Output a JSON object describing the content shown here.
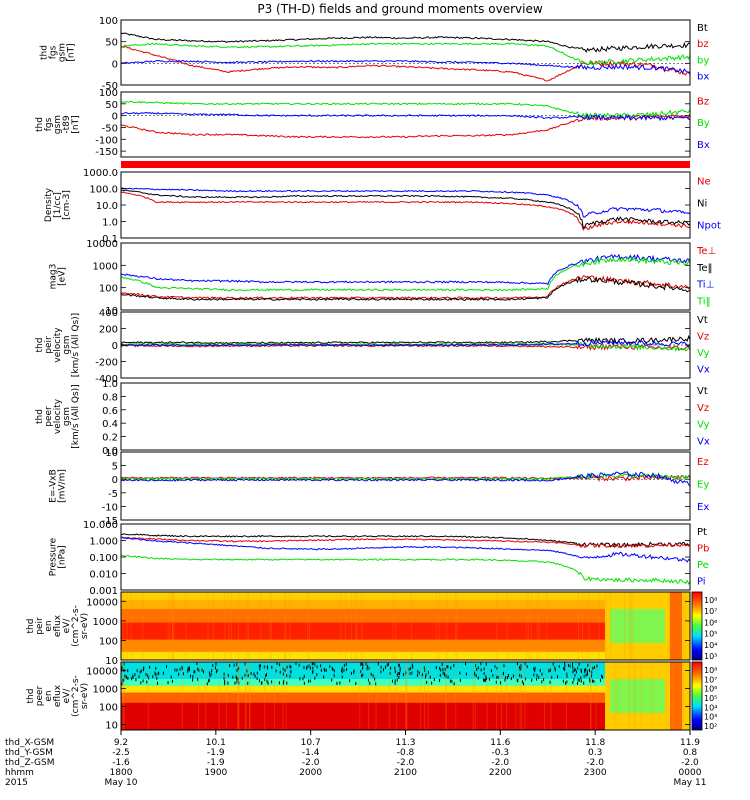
{
  "title": "P3 (TH-D) fields and ground moments overview",
  "colors": {
    "black": "#000000",
    "red": "#e00000",
    "green": "#00e000",
    "blue": "#0000ff"
  },
  "chart_data": [
    {
      "type": "line",
      "panel": "fgs-gsm",
      "ylabel_lines": [
        "thd",
        "fgs",
        "gsm",
        "[nT]"
      ],
      "ylim": [
        -50,
        100
      ],
      "yticks": [
        "100",
        "50",
        "0",
        "-50"
      ],
      "legend": [
        "Bt",
        "bz",
        "by",
        "bx"
      ],
      "legend_colors": [
        "black",
        "red",
        "green",
        "blue"
      ],
      "series": [
        {
          "name": "Bt",
          "color": "black",
          "values": [
            70,
            55,
            52,
            50,
            52,
            55,
            58,
            60,
            58,
            60,
            58,
            55,
            50,
            30,
            35,
            40,
            42
          ]
        },
        {
          "name": "bz",
          "color": "red",
          "values": [
            40,
            18,
            -5,
            -20,
            -12,
            -8,
            -10,
            -5,
            -8,
            -12,
            -15,
            -20,
            -40,
            0,
            0,
            -5,
            -25
          ]
        },
        {
          "name": "by",
          "color": "green",
          "values": [
            40,
            45,
            40,
            38,
            38,
            40,
            42,
            45,
            45,
            45,
            45,
            45,
            40,
            0,
            5,
            10,
            15
          ]
        },
        {
          "name": "bx",
          "color": "blue",
          "values": [
            0,
            5,
            5,
            2,
            3,
            5,
            5,
            5,
            5,
            3,
            2,
            0,
            -5,
            -10,
            -8,
            -10,
            -20
          ]
        }
      ]
    },
    {
      "type": "line",
      "panel": "fgs-gsm-t89",
      "ylabel_lines": [
        "thd",
        "fgs",
        "gsm",
        "-t89",
        "[nT]"
      ],
      "ylim": [
        -175,
        100
      ],
      "yticks": [
        "100",
        "50",
        "0",
        "-50",
        "-100",
        "-150"
      ],
      "legend": [
        "Bz",
        "By",
        "Bx"
      ],
      "legend_colors": [
        "red",
        "green",
        "blue"
      ],
      "series": [
        {
          "name": "Bz",
          "color": "red",
          "values": [
            -40,
            -70,
            -80,
            -80,
            -85,
            -90,
            -90,
            -90,
            -90,
            -85,
            -85,
            -80,
            -60,
            -10,
            -10,
            -5,
            0
          ]
        },
        {
          "name": "By",
          "color": "green",
          "values": [
            60,
            55,
            50,
            50,
            50,
            50,
            50,
            50,
            50,
            50,
            50,
            50,
            40,
            0,
            0,
            5,
            20
          ]
        },
        {
          "name": "Bx",
          "color": "blue",
          "values": [
            10,
            10,
            5,
            5,
            0,
            0,
            0,
            0,
            0,
            0,
            0,
            0,
            -10,
            -5,
            -10,
            -10,
            -10
          ]
        }
      ]
    },
    {
      "type": "line",
      "panel": "density",
      "ylabel_lines": [
        "Density",
        "[1/cc]",
        "[cm-3]"
      ],
      "yscale": "log",
      "ylim": [
        0.1,
        1000
      ],
      "yticks": [
        "1000.0",
        "100.0",
        "10.0",
        "1.0",
        "0.1"
      ],
      "legend": [
        "Ne",
        "Ni",
        "Npot"
      ],
      "legend_colors": [
        "red",
        "black",
        "blue"
      ],
      "series": [
        {
          "name": "Ne",
          "color": "red",
          "values": [
            60,
            15,
            15,
            15,
            15,
            15,
            15,
            15,
            15,
            15,
            15,
            12,
            8,
            0.3,
            1,
            0.8,
            0.5
          ]
        },
        {
          "name": "Ni",
          "color": "black",
          "values": [
            80,
            40,
            30,
            30,
            30,
            35,
            35,
            35,
            35,
            35,
            30,
            25,
            15,
            0.5,
            1.5,
            1,
            0.8
          ]
        },
        {
          "name": "Npot",
          "color": "blue",
          "values": [
            100,
            90,
            80,
            70,
            70,
            70,
            70,
            70,
            70,
            70,
            70,
            60,
            40,
            2,
            6,
            5,
            3
          ]
        }
      ]
    },
    {
      "type": "line",
      "panel": "temperature",
      "ylabel_lines": [
        "mag3",
        "[eV]"
      ],
      "yscale": "log",
      "ylim": [
        10,
        10000
      ],
      "yticks": [
        "10000",
        "1000",
        "100",
        "10"
      ],
      "legend": [
        "Te⊥",
        "Te‖",
        "Ti⊥",
        "Ti‖"
      ],
      "legend_colors": [
        "red",
        "black",
        "blue",
        "green"
      ],
      "series": [
        {
          "name": "Te⊥",
          "color": "red",
          "values": [
            60,
            40,
            35,
            35,
            35,
            35,
            35,
            35,
            35,
            35,
            35,
            35,
            40,
            300,
            200,
            150,
            100
          ]
        },
        {
          "name": "Te‖",
          "color": "black",
          "values": [
            50,
            35,
            30,
            30,
            30,
            30,
            30,
            30,
            30,
            30,
            30,
            30,
            35,
            250,
            180,
            120,
            80
          ]
        },
        {
          "name": "Ti⊥",
          "color": "blue",
          "values": [
            400,
            250,
            200,
            200,
            180,
            180,
            180,
            180,
            180,
            180,
            180,
            170,
            150,
            1500,
            2500,
            2000,
            1500
          ]
        },
        {
          "name": "Ti‖",
          "color": "green",
          "values": [
            300,
            100,
            90,
            80,
            80,
            80,
            80,
            80,
            80,
            80,
            80,
            80,
            90,
            1200,
            2000,
            1500,
            1200
          ]
        }
      ]
    },
    {
      "type": "line",
      "panel": "peir-velocity",
      "ylabel_lines": [
        "thd",
        "peir",
        "velocity",
        "gsm",
        "[km/s (All Qs)]"
      ],
      "ylim": [
        -400,
        400
      ],
      "yticks": [
        "400",
        "200",
        "0",
        "-200",
        "-400"
      ],
      "legend": [
        "Vt",
        "Vz",
        "Vy",
        "Vx"
      ],
      "legend_colors": [
        "black",
        "red",
        "green",
        "blue"
      ],
      "series": [
        {
          "name": "Vt",
          "color": "black",
          "values": [
            30,
            30,
            30,
            25,
            25,
            25,
            30,
            30,
            30,
            30,
            30,
            30,
            40,
            60,
            50,
            60,
            80
          ]
        },
        {
          "name": "Vz",
          "color": "red",
          "values": [
            -10,
            -10,
            -15,
            -10,
            -10,
            -10,
            -10,
            -10,
            -10,
            -10,
            -10,
            -10,
            -20,
            -30,
            -20,
            -30,
            -40
          ]
        },
        {
          "name": "Vy",
          "color": "green",
          "values": [
            10,
            10,
            10,
            10,
            10,
            10,
            10,
            10,
            10,
            10,
            10,
            10,
            10,
            0,
            -20,
            -30,
            -50
          ]
        },
        {
          "name": "Vx",
          "color": "blue",
          "values": [
            0,
            0,
            -5,
            0,
            0,
            0,
            0,
            0,
            0,
            0,
            0,
            0,
            10,
            20,
            30,
            20,
            10
          ]
        }
      ]
    },
    {
      "type": "line",
      "panel": "peer-velocity",
      "ylabel_lines": [
        "thd",
        "peer",
        "velocity",
        "gsm",
        "[km/s (All Qs)]"
      ],
      "ylim": [
        0,
        1
      ],
      "yticks": [
        "1.0",
        "0.8",
        "0.6",
        "0.4",
        "0.2",
        "0.0"
      ],
      "legend": [
        "Vt",
        "Vz",
        "Vy",
        "Vx"
      ],
      "legend_colors": [
        "black",
        "red",
        "green",
        "blue"
      ],
      "series": []
    },
    {
      "type": "line",
      "panel": "efield",
      "ylabel_lines": [
        "E=-VxB",
        "[mV/m]"
      ],
      "ylim": [
        -15,
        10
      ],
      "yticks": [
        "10",
        "5",
        "0",
        "-5",
        "-10",
        "-15"
      ],
      "legend": [
        "Ez",
        "Ey",
        "Ex"
      ],
      "legend_colors": [
        "red",
        "green",
        "blue"
      ],
      "series": [
        {
          "name": "Ez",
          "color": "red",
          "values": [
            0.5,
            0.5,
            0.5,
            0.5,
            0.5,
            0.5,
            0.5,
            0.5,
            0.5,
            0.5,
            0.5,
            0.5,
            0.3,
            0.5,
            0.3,
            0.5,
            0.8
          ]
        },
        {
          "name": "Ey",
          "color": "green",
          "values": [
            0.2,
            0.2,
            0.2,
            0.2,
            0.2,
            0.2,
            0.2,
            0.2,
            0.2,
            0.2,
            0.2,
            0.2,
            0.2,
            1,
            1.5,
            1,
            0.5
          ]
        },
        {
          "name": "Ex",
          "color": "blue",
          "values": [
            -0.3,
            -0.5,
            -0.3,
            -0.3,
            -0.3,
            -0.3,
            -0.3,
            -0.3,
            -0.3,
            -0.3,
            -0.3,
            -0.3,
            -0.5,
            1,
            2,
            1.5,
            -2
          ]
        }
      ]
    },
    {
      "type": "line",
      "panel": "pressure",
      "ylabel_lines": [
        "Pressure",
        "[nPa]"
      ],
      "yscale": "log",
      "ylim": [
        0.001,
        10
      ],
      "yticks": [
        "10.000",
        "1.000",
        "0.100",
        "0.010",
        "0.001"
      ],
      "legend": [
        "Pt",
        "Pb",
        "Pe",
        "Pi"
      ],
      "legend_colors": [
        "black",
        "red",
        "green",
        "blue"
      ],
      "series": [
        {
          "name": "Pt",
          "color": "black",
          "values": [
            2.5,
            2.0,
            1.8,
            1.8,
            1.8,
            1.8,
            1.8,
            1.8,
            1.8,
            1.8,
            1.6,
            1.4,
            1.0,
            0.6,
            0.5,
            0.6,
            0.6
          ]
        },
        {
          "name": "Pb",
          "color": "red",
          "values": [
            1.5,
            1.2,
            1.0,
            0.9,
            0.9,
            1.0,
            1.1,
            1.2,
            1.2,
            1.1,
            1.0,
            0.9,
            0.8,
            0.5,
            0.5,
            0.5,
            0.6
          ]
        },
        {
          "name": "Pe",
          "color": "green",
          "values": [
            0.12,
            0.08,
            0.07,
            0.07,
            0.07,
            0.07,
            0.07,
            0.07,
            0.07,
            0.07,
            0.07,
            0.06,
            0.05,
            0.005,
            0.004,
            0.004,
            0.003
          ]
        },
        {
          "name": "Pi",
          "color": "blue",
          "values": [
            1.5,
            0.9,
            0.7,
            0.5,
            0.35,
            0.3,
            0.3,
            0.35,
            0.4,
            0.4,
            0.35,
            0.3,
            0.25,
            0.08,
            0.15,
            0.1,
            0.06
          ]
        }
      ]
    },
    {
      "type": "heatmap",
      "panel": "peir-en-eflux",
      "ylabel_lines": [
        "thd",
        "peir",
        "en",
        "eflux",
        "eV/",
        "(cm^2-s-",
        "sr-eV)"
      ],
      "yscale": "log",
      "ylim": [
        10,
        30000
      ],
      "yticks": [
        "10000",
        "1000",
        "100",
        "10"
      ],
      "colorbar_label": "[eV/(cm^2-s-sr-eV) (All Qs)]",
      "colorbar_ticks": [
        "10⁸",
        "10⁷",
        "10⁶",
        "10⁵",
        "10⁴",
        "10³"
      ]
    },
    {
      "type": "heatmap",
      "panel": "peer-en-eflux",
      "ylabel_lines": [
        "thd",
        "peer",
        "en",
        "eflux",
        "eV/",
        "(cm^2-s-",
        "sr-eV)"
      ],
      "yscale": "log",
      "ylim": [
        5,
        30000
      ],
      "yticks": [
        "10000",
        "1000",
        "100",
        "10"
      ],
      "colorbar_label": "[eV/(cm^2-s-sr-eV) (All Qs)]",
      "colorbar_ticks": [
        "10⁸",
        "10⁷",
        "10⁶",
        "10⁵",
        "10⁴",
        "10³",
        "10²"
      ]
    }
  ],
  "x_axis": {
    "row_labels": [
      "thd_X-GSM",
      "thd_Y-GSM",
      "thd_Z-GSM",
      "hhmm",
      "2015"
    ],
    "ticks": [
      {
        "x": "9.2",
        "y": "-2.5",
        "z": "-1.6",
        "hhmm": "1800",
        "date": "May 10"
      },
      {
        "x": "10.1",
        "y": "-1.9",
        "z": "-1.9",
        "hhmm": "1900",
        "date": ""
      },
      {
        "x": "10.7",
        "y": "-1.4",
        "z": "-2.0",
        "hhmm": "2000",
        "date": ""
      },
      {
        "x": "11.3",
        "y": "-0.8",
        "z": "-2.0",
        "hhmm": "2100",
        "date": ""
      },
      {
        "x": "11.6",
        "y": "-0.3",
        "z": "-2.0",
        "hhmm": "2200",
        "date": ""
      },
      {
        "x": "11.8",
        "y": "0.3",
        "z": "-2.0",
        "hhmm": "2300",
        "date": ""
      },
      {
        "x": "11.9",
        "y": "0.8",
        "z": "-2.0",
        "hhmm": "0000",
        "date": "May 11"
      }
    ]
  }
}
